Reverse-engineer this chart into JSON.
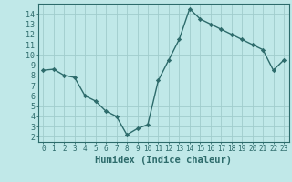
{
  "x": [
    0,
    1,
    2,
    3,
    4,
    5,
    6,
    7,
    8,
    9,
    10,
    11,
    12,
    13,
    14,
    15,
    16,
    17,
    18,
    19,
    20,
    21,
    22,
    23
  ],
  "y": [
    8.5,
    8.6,
    8.0,
    7.8,
    6.0,
    5.5,
    4.5,
    4.0,
    2.2,
    2.8,
    3.2,
    7.5,
    9.5,
    11.5,
    14.5,
    13.5,
    13.0,
    12.5,
    12.0,
    11.5,
    11.0,
    10.5,
    8.5,
    9.5
  ],
  "xlabel": "Humidex (Indice chaleur)",
  "xlim": [
    -0.5,
    23.5
  ],
  "ylim": [
    1.5,
    15.0
  ],
  "yticks": [
    2,
    3,
    4,
    5,
    6,
    7,
    8,
    9,
    10,
    11,
    12,
    13,
    14
  ],
  "xticks": [
    0,
    1,
    2,
    3,
    4,
    5,
    6,
    7,
    8,
    9,
    10,
    11,
    12,
    13,
    14,
    15,
    16,
    17,
    18,
    19,
    20,
    21,
    22,
    23
  ],
  "xtick_labels": [
    "0",
    "1",
    "2",
    "3",
    "4",
    "5",
    "6",
    "7",
    "8",
    "9",
    "10",
    "11",
    "12",
    "13",
    "14",
    "15",
    "16",
    "17",
    "18",
    "19",
    "20",
    "21",
    "22",
    "23"
  ],
  "line_color": "#2d6b6b",
  "marker": "D",
  "marker_size": 2.2,
  "bg_color": "#c0e8e8",
  "grid_color": "#a0cccc",
  "tick_color": "#2d6b6b",
  "label_color": "#2d6b6b",
  "xlabel_fontsize": 7.5,
  "ytick_fontsize": 6.0,
  "xtick_fontsize": 5.5,
  "linewidth": 1.0
}
